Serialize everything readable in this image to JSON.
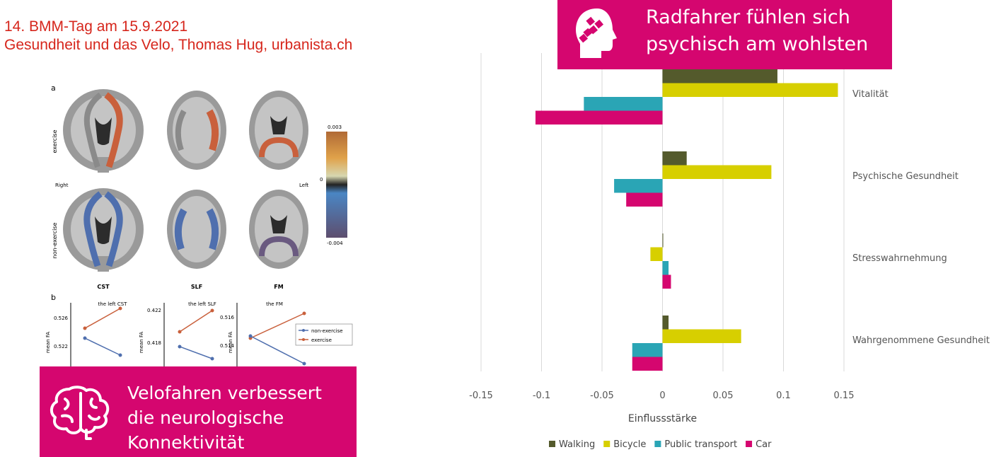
{
  "header": {
    "line1": "14. BMM-Tag am 15.9.2021",
    "line2": "Gesundheit und das Velo, Thomas Hug, urbanista.ch"
  },
  "callout_top": {
    "line1": "Radfahrer fühlen sich",
    "line2": "psychisch am wohlsten",
    "icon": "head-puzzle-icon"
  },
  "callout_bottom": {
    "line1": "Velofahren verbessert",
    "line2": "die neurologische",
    "line3": "Konnektivität",
    "icon": "brain-icon"
  },
  "brain_figure": {
    "panel_a_label": "a",
    "panel_b_label": "b",
    "row_labels": [
      "exercise",
      "non-exercise"
    ],
    "side_labels": {
      "right": "Right",
      "left": "Left"
    },
    "tract_labels": [
      "CST",
      "SLF",
      "FM"
    ],
    "colorbar": {
      "max": "0.003",
      "zero": "0",
      "min": "-0.004"
    },
    "colors": {
      "exercise": "#c9603c",
      "non_exercise": "#4f6fae",
      "brain": "#9a9a9a"
    },
    "line_panels": [
      {
        "title": "the left CST",
        "yticks": [
          "0.526",
          "0.522"
        ],
        "ylabel": "mean FA"
      },
      {
        "title": "the left SLF",
        "yticks": [
          "0.422",
          "0.418"
        ],
        "ylabel": "mean FA"
      },
      {
        "title": "the FM",
        "yticks": [
          "0.516",
          "0.514"
        ],
        "ylabel": "mean FA"
      }
    ],
    "legend": [
      "non-exercise",
      "exercise"
    ]
  },
  "chart_data": {
    "type": "bar",
    "orientation": "horizontal",
    "categories": [
      "Vitalität",
      "Psychische Gesundheit",
      "Stresswahrnehmung",
      "Wahrgenommene Gesundheit"
    ],
    "series": [
      {
        "name": "Walking",
        "color": "#545a2c",
        "values": [
          0.095,
          0.02,
          0.0005,
          0.005
        ]
      },
      {
        "name": "Bicycle",
        "color": "#d7cf00",
        "values": [
          0.145,
          0.09,
          -0.01,
          0.065
        ]
      },
      {
        "name": "Public transport",
        "color": "#2aa5b5",
        "values": [
          -0.065,
          -0.04,
          0.005,
          -0.025
        ]
      },
      {
        "name": "Car",
        "color": "#d5066f",
        "values": [
          -0.105,
          -0.03,
          0.007,
          -0.025
        ]
      }
    ],
    "xlabel": "Einflussstärke",
    "xlim": [
      -0.15,
      0.15
    ],
    "xticks": [
      -0.15,
      -0.1,
      -0.05,
      0,
      0.05,
      0.1,
      0.15
    ],
    "xtick_labels": [
      "-0.15",
      "-0.1",
      "-0.05",
      "0",
      "0.05",
      "0.1",
      "0.15"
    ],
    "grid": true,
    "legend_position": "bottom"
  }
}
